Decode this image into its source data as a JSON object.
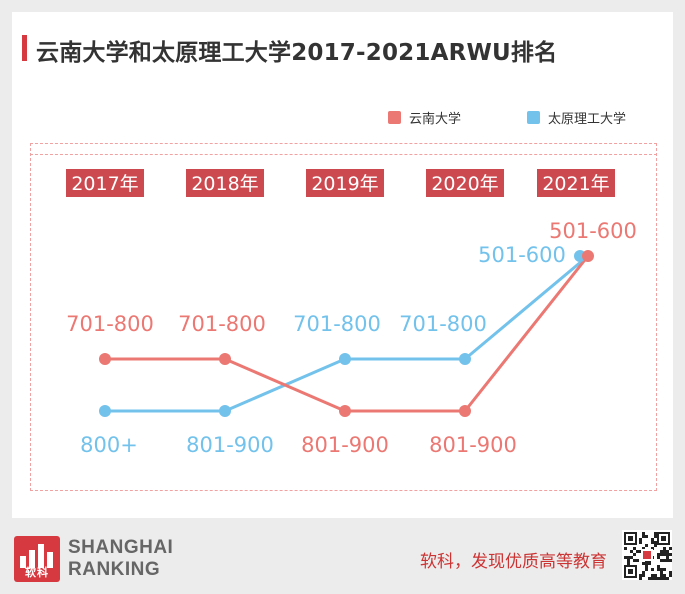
{
  "title": "云南大学和太原理工大学2017-2021ARWU排名",
  "chart_data": {
    "type": "line",
    "categories": [
      "2017年",
      "2018年",
      "2019年",
      "2020年",
      "2021年"
    ],
    "series": [
      {
        "name": "云南大学",
        "color": "#eb7872",
        "labels": [
          "701-800",
          "701-800",
          "801-900",
          "801-900",
          "501-600"
        ],
        "rank_levels": [
          2,
          2,
          1,
          1,
          3
        ]
      },
      {
        "name": "太原理工大学",
        "color": "#72c2ec",
        "labels": [
          "800+",
          "801-900",
          "701-800",
          "701-800",
          "501-600"
        ],
        "rank_levels": [
          1,
          1,
          2,
          2,
          3
        ]
      }
    ],
    "legend": "top-right",
    "grid": false
  },
  "footer": {
    "logo_sub": "软科",
    "brand_line1": "SHANGHAI",
    "brand_line2": "RANKING",
    "slogan": "软科，发现优质高等教育"
  },
  "colors": {
    "accent": "#d6393f",
    "category_bg": "#cc4a4f"
  }
}
